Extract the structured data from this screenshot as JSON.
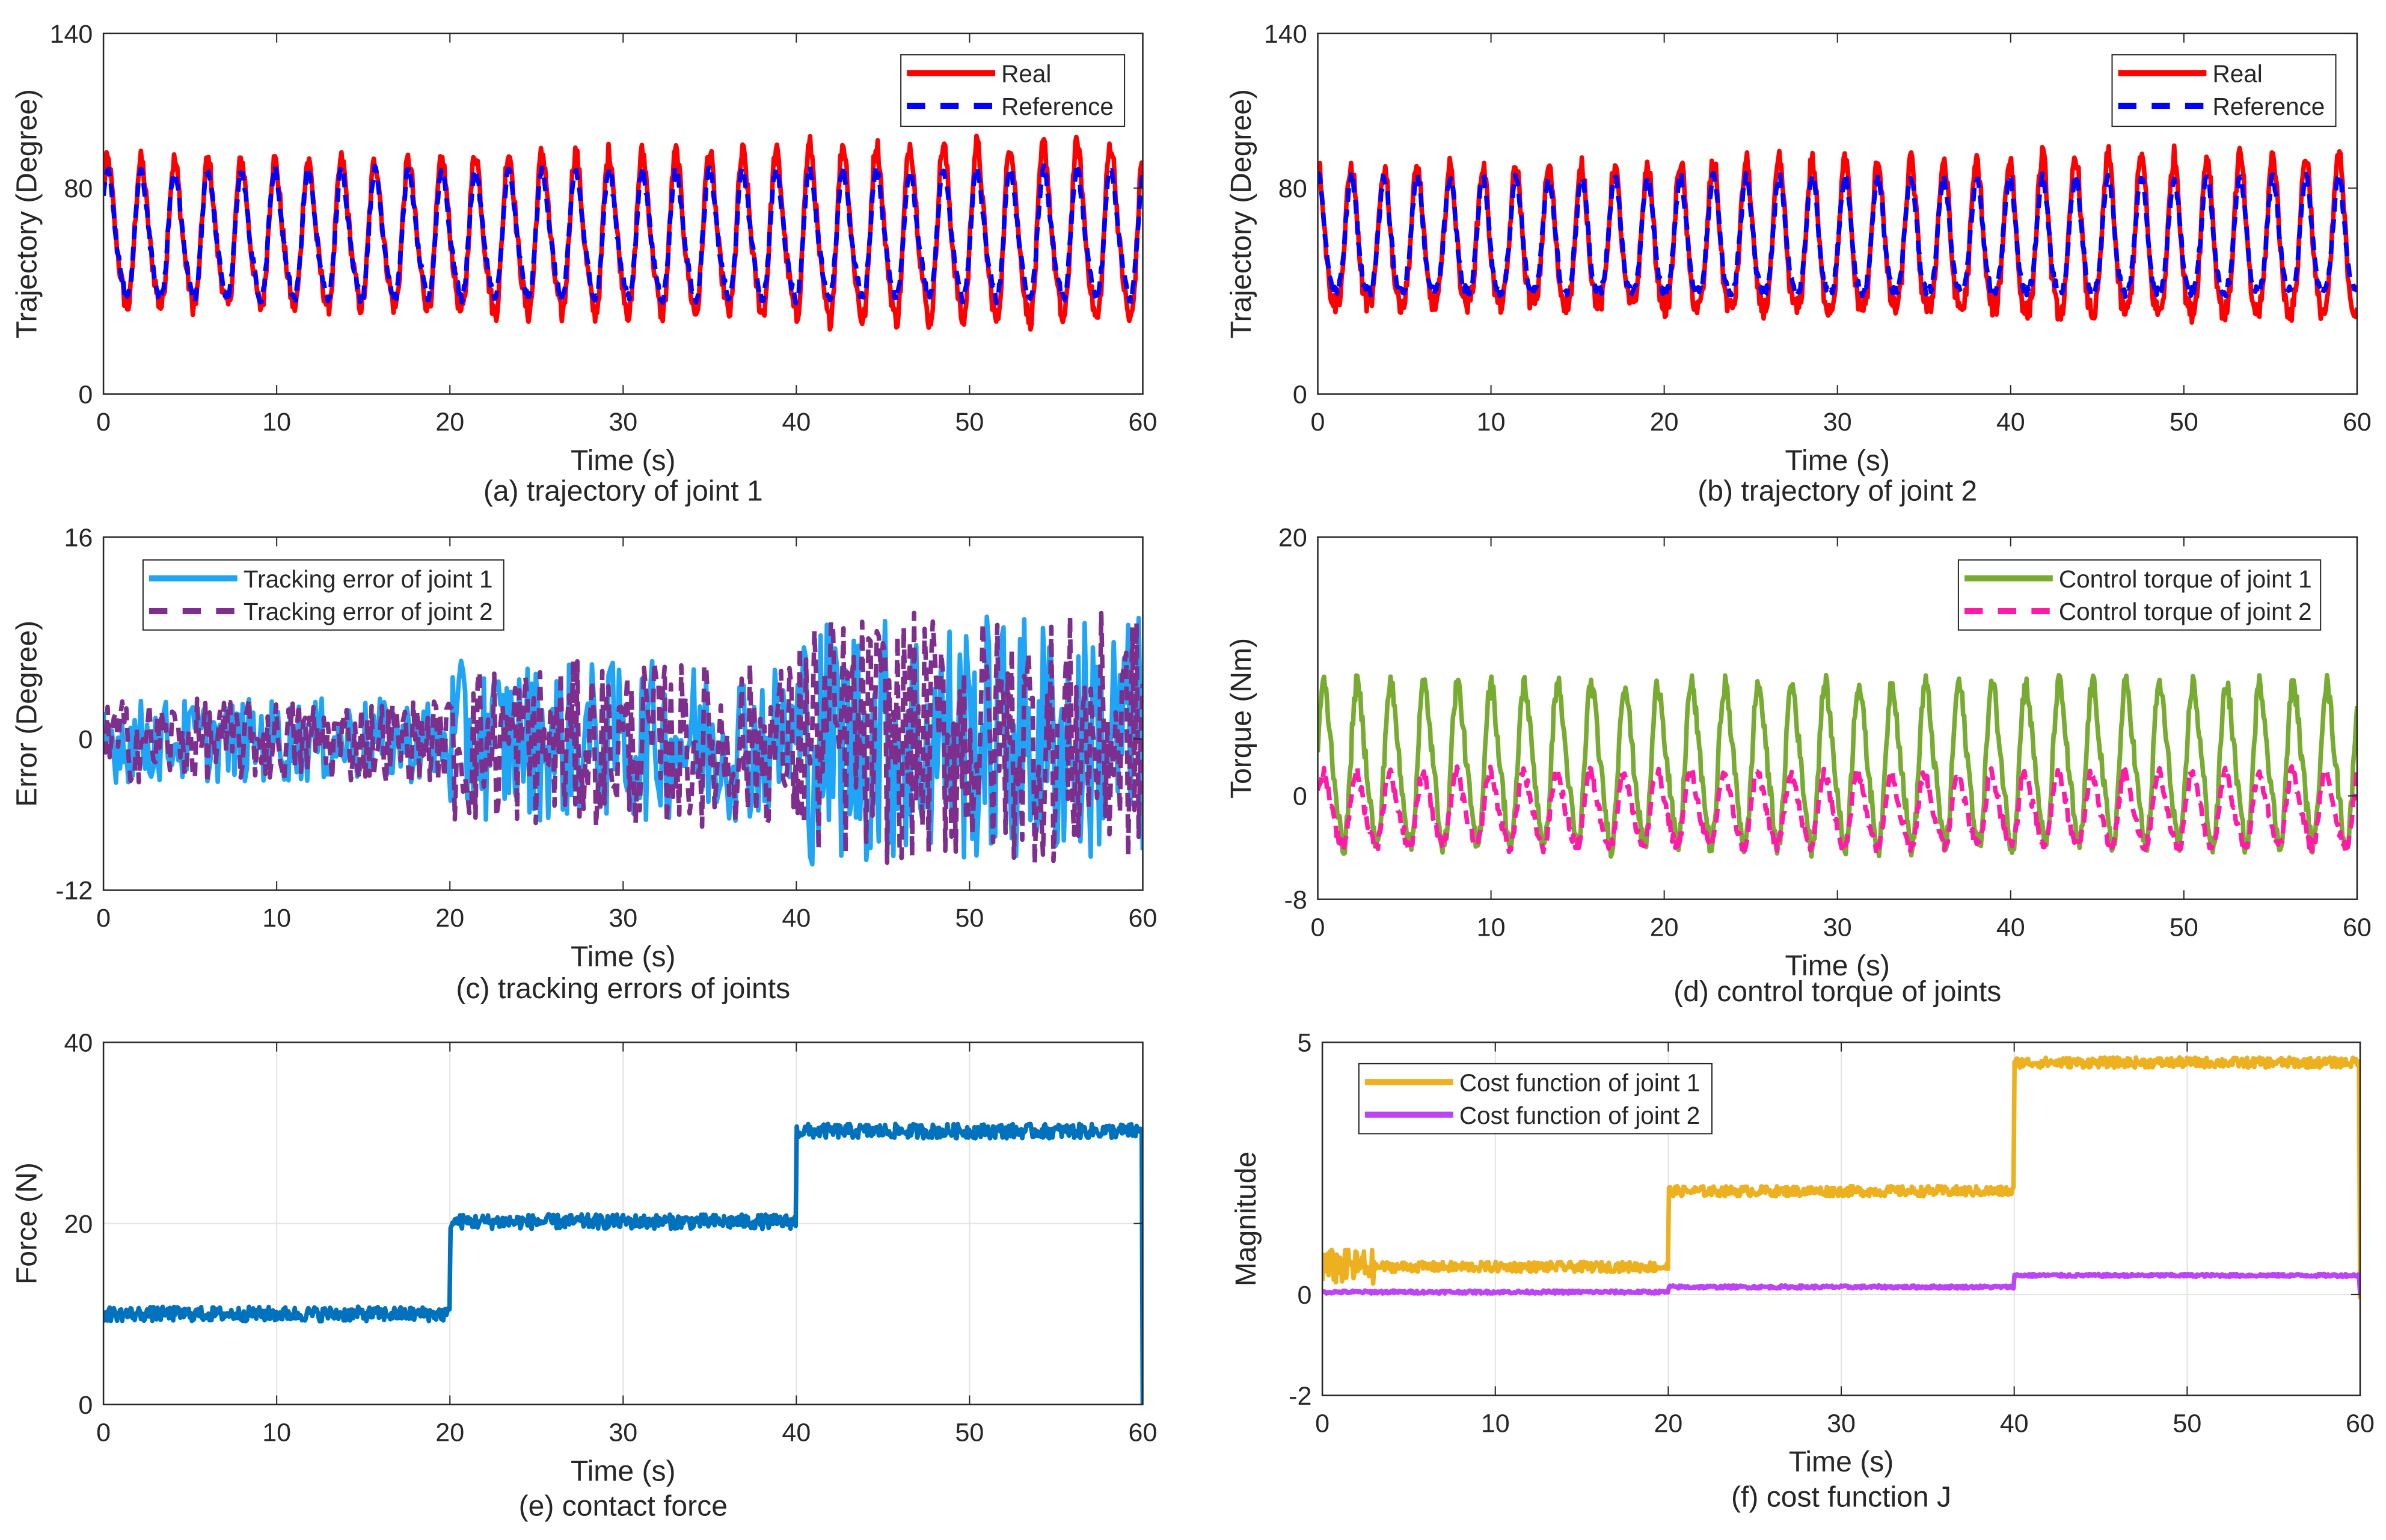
{
  "chart_data": [
    {
      "id": "a",
      "type": "line",
      "caption": "(a) trajectory of joint 1",
      "xlabel": "Time (s)",
      "ylabel": "Trajectory (Degree)",
      "xlim": [
        0,
        60
      ],
      "ylim": [
        0,
        140
      ],
      "xticks": [
        "0",
        "10",
        "20",
        "30",
        "40",
        "50",
        "60"
      ],
      "yticks": [
        "0",
        "80",
        "140"
      ],
      "grid": false,
      "legend_position": "top-right",
      "series": [
        {
          "name": "Real",
          "color": "#ff0000",
          "style": "solid",
          "model": "sine",
          "mean": 60,
          "amplitude": 32,
          "period_s": 1.93,
          "noise": 4,
          "phase": 0.6,
          "segments": [
            [
              0,
              20,
              1.0
            ],
            [
              20,
              40,
              1.1
            ],
            [
              40,
              60,
              1.2
            ]
          ]
        },
        {
          "name": "Reference",
          "color": "#0000ff",
          "style": "dashed",
          "model": "sine",
          "mean": 60,
          "amplitude": 28,
          "period_s": 1.93,
          "noise": 2,
          "phase": 0.6,
          "segments": [
            [
              0,
              60,
              1.0
            ]
          ]
        }
      ]
    },
    {
      "id": "b",
      "type": "line",
      "caption": "(b) trajectory of joint 2",
      "xlabel": "Time (s)",
      "ylabel": "Trajectory (Degree)",
      "xlim": [
        0,
        60
      ],
      "ylim": [
        0,
        140
      ],
      "xticks": [
        "0",
        "10",
        "20",
        "30",
        "40",
        "50",
        "60"
      ],
      "yticks": [
        "0",
        "80",
        "140"
      ],
      "grid": false,
      "legend_position": "top-right",
      "series": [
        {
          "name": "Real",
          "color": "#ff0000",
          "style": "solid",
          "model": "sine",
          "mean": 57,
          "amplitude": 31,
          "period_s": 1.9,
          "noise": 4,
          "phase": 1.4,
          "segments": [
            [
              0,
              20,
              1.0
            ],
            [
              20,
              40,
              1.08
            ],
            [
              40,
              60,
              1.15
            ]
          ]
        },
        {
          "name": "Reference",
          "color": "#0000ff",
          "style": "dashed",
          "model": "sine",
          "mean": 58,
          "amplitude": 26,
          "period_s": 1.9,
          "noise": 2,
          "phase": 1.4,
          "segments": [
            [
              0,
              60,
              1.0
            ]
          ]
        }
      ]
    },
    {
      "id": "c",
      "type": "line",
      "caption": "(c) tracking errors of joints",
      "xlabel": "Time (s)",
      "ylabel": "Error (Degree)",
      "xlim": [
        0,
        60
      ],
      "ylim": [
        -12,
        16
      ],
      "xticks": [
        "0",
        "10",
        "20",
        "30",
        "40",
        "50",
        "60"
      ],
      "yticks": [
        "-12",
        "0",
        "16"
      ],
      "grid": false,
      "legend_position": "top-left",
      "series": [
        {
          "name": "Tracking error of joint 1",
          "color": "#1fa5f5",
          "style": "solid",
          "model": "random",
          "segments": [
            [
              0,
              20,
              -3.5,
              3.2
            ],
            [
              20,
              40,
              -6.5,
              6.2
            ],
            [
              40,
              60,
              -10,
              10
            ]
          ]
        },
        {
          "name": "Tracking error of joint 2",
          "color": "#7e2f8e",
          "style": "dashed",
          "model": "random",
          "segments": [
            [
              0,
              20,
              -3.5,
              3.2
            ],
            [
              20,
              40,
              -7,
              6.2
            ],
            [
              40,
              60,
              -10,
              10
            ]
          ]
        }
      ]
    },
    {
      "id": "d",
      "type": "line",
      "caption": "(d) control torque of joints",
      "xlabel": "Time (s)",
      "ylabel": "Torque (Nm)",
      "xlim": [
        0,
        60
      ],
      "ylim": [
        -8,
        20
      ],
      "xticks": [
        "0",
        "10",
        "20",
        "30",
        "40",
        "50",
        "60"
      ],
      "yticks": [
        "-8",
        "0",
        "20"
      ],
      "grid": false,
      "legend_position": "top-right",
      "series": [
        {
          "name": "Control torque of joint 1",
          "color": "#77ac30",
          "style": "solid",
          "model": "sine",
          "mean": 2.2,
          "amplitude": 7,
          "period_s": 1.93,
          "noise": 0.8,
          "phase": 0.2,
          "segments": [
            [
              0,
              60,
              1.0
            ]
          ]
        },
        {
          "name": "Control torque of joint 2",
          "color": "#ff1aa8",
          "style": "dashed",
          "model": "sine",
          "mean": -1.2,
          "amplitude": 3.2,
          "period_s": 1.93,
          "noise": 0.5,
          "phase": 0.4,
          "segments": [
            [
              0,
              60,
              1.0
            ]
          ]
        }
      ]
    },
    {
      "id": "e",
      "type": "line",
      "caption": "(e) contact force",
      "xlabel": "Time (s)",
      "ylabel": "Force (N)",
      "xlim": [
        0,
        60
      ],
      "ylim": [
        0,
        40
      ],
      "xticks": [
        "0",
        "10",
        "20",
        "30",
        "40",
        "50",
        "60"
      ],
      "yticks": [
        "0",
        "20",
        "40"
      ],
      "grid": true,
      "legend_position": "none",
      "series": [
        {
          "name": "Contact force",
          "color": "#0072bd",
          "style": "solid",
          "model": "step",
          "noise": 0.8,
          "segments": [
            [
              0,
              20,
              10
            ],
            [
              20,
              40,
              20.2
            ],
            [
              40,
              60,
              30.2
            ]
          ]
        }
      ]
    },
    {
      "id": "f",
      "type": "line",
      "caption": "(f) cost function J",
      "xlabel": "Time (s)",
      "ylabel": "Magnitude",
      "xlim": [
        0,
        60
      ],
      "ylim": [
        -2,
        5
      ],
      "xticks": [
        "0",
        "10",
        "20",
        "30",
        "40",
        "50",
        "60"
      ],
      "yticks": [
        "-2",
        "0",
        "5"
      ],
      "grid": true,
      "legend_position": "top-left",
      "series": [
        {
          "name": "Cost function of joint 1",
          "color": "#edb120",
          "style": "solid",
          "model": "step",
          "noise": 0.1,
          "segments": [
            [
              0,
              20,
              0.55
            ],
            [
              20,
              40,
              2.05
            ],
            [
              40,
              60,
              4.6
            ]
          ]
        },
        {
          "name": "Cost function of joint 2",
          "color": "#bb44f5",
          "style": "solid",
          "model": "step",
          "noise": 0.03,
          "segments": [
            [
              0,
              20,
              0.05
            ],
            [
              20,
              40,
              0.15
            ],
            [
              40,
              60,
              0.38
            ]
          ]
        }
      ]
    }
  ]
}
